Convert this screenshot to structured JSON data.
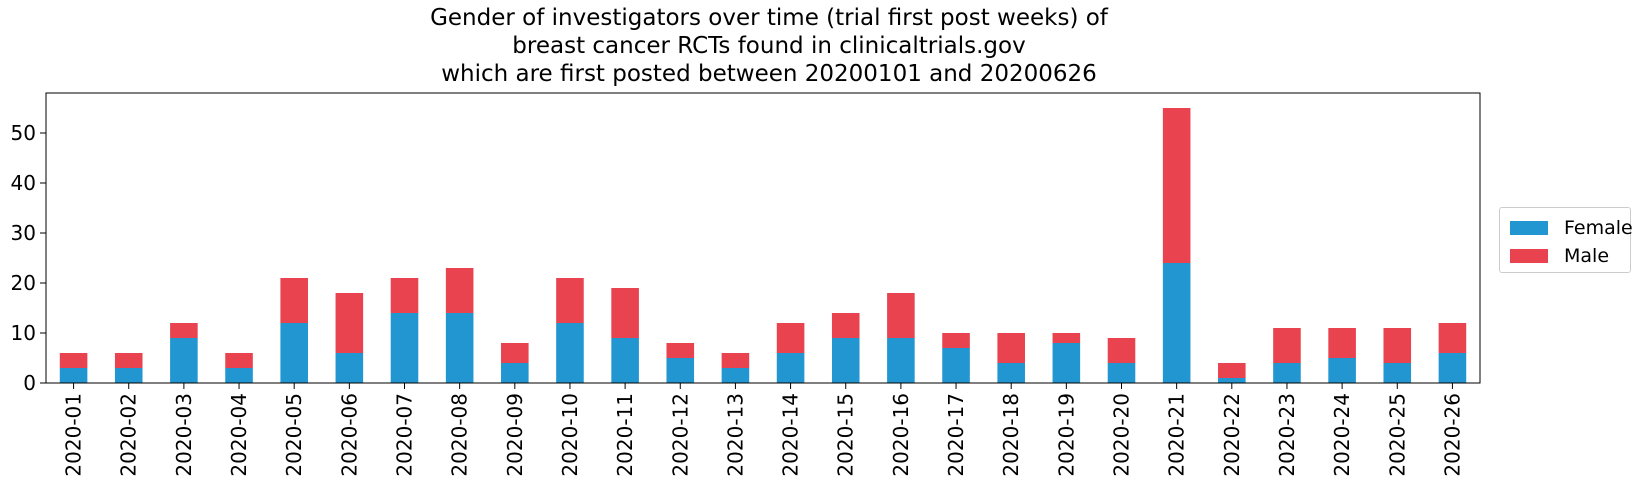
{
  "chart_data": {
    "type": "bar",
    "stacked": true,
    "title_lines": [
      "Gender of investigators over time (trial first post weeks) of",
      "breast cancer RCTs found in clinicaltrials.gov",
      "which are first posted between 20200101 and 20200626"
    ],
    "xlabel": "",
    "ylabel": "",
    "categories": [
      "2020-01",
      "2020-02",
      "2020-03",
      "2020-04",
      "2020-05",
      "2020-06",
      "2020-07",
      "2020-08",
      "2020-09",
      "2020-10",
      "2020-11",
      "2020-12",
      "2020-13",
      "2020-14",
      "2020-15",
      "2020-16",
      "2020-17",
      "2020-18",
      "2020-19",
      "2020-20",
      "2020-21",
      "2020-22",
      "2020-23",
      "2020-24",
      "2020-25",
      "2020-26"
    ],
    "series": [
      {
        "name": "Female",
        "color": "#2196d0",
        "values": [
          3,
          3,
          9,
          3,
          12,
          6,
          14,
          14,
          4,
          12,
          9,
          5,
          3,
          6,
          9,
          9,
          7,
          4,
          8,
          4,
          24,
          1,
          4,
          5,
          4,
          6
        ]
      },
      {
        "name": "Male",
        "color": "#e8434f",
        "values": [
          3,
          3,
          3,
          3,
          9,
          12,
          7,
          9,
          4,
          9,
          10,
          3,
          3,
          6,
          5,
          9,
          3,
          6,
          2,
          5,
          31,
          3,
          7,
          6,
          7,
          6
        ]
      }
    ],
    "ylim": [
      0,
      58
    ],
    "yticks": [
      0,
      10,
      20,
      30,
      40,
      50
    ],
    "grid": false,
    "legend_position": "right"
  }
}
